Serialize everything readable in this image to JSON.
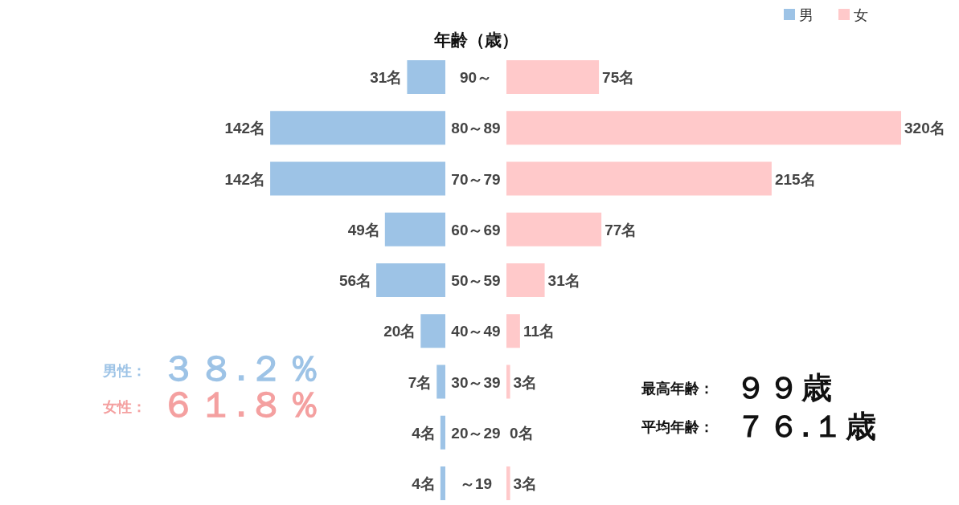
{
  "chart_data": [
    {
      "type": "bar",
      "orientation": "horizontal",
      "title": "年齢（歳）",
      "categories": [
        "90～",
        "80～89",
        "70～79",
        "60～69",
        "50～59",
        "40～49",
        "30～39",
        "20～29",
        "～19"
      ],
      "series": [
        {
          "name": "男",
          "color": "#9dc3e6",
          "values": [
            31,
            142,
            142,
            49,
            56,
            20,
            7,
            4,
            4
          ],
          "value_labels": [
            "31名",
            "142名",
            "142名",
            "49名",
            "56名",
            "20名",
            "7名",
            "4名",
            "4名"
          ]
        }
      ],
      "legend": "top right",
      "annotations": [
        "男性：３８.２％",
        "女性：６１.８％"
      ]
    },
    {
      "type": "bar",
      "orientation": "horizontal",
      "categories": [
        null,
        null,
        null,
        null,
        null,
        null,
        null,
        null,
        null
      ],
      "series": [
        {
          "name": "女",
          "color": "#ffc9ca",
          "values": [
            75,
            320,
            215,
            77,
            31,
            11,
            3,
            0,
            3
          ],
          "value_labels": [
            "75名",
            "320名",
            "215名",
            "77名",
            "31名",
            "11名",
            "3名",
            "0名",
            "3名"
          ]
        }
      ],
      "legend": "top right",
      "annotations": [
        "最高年齢：９９歳",
        "平均年齢：７６.１歳"
      ]
    }
  ]
}
